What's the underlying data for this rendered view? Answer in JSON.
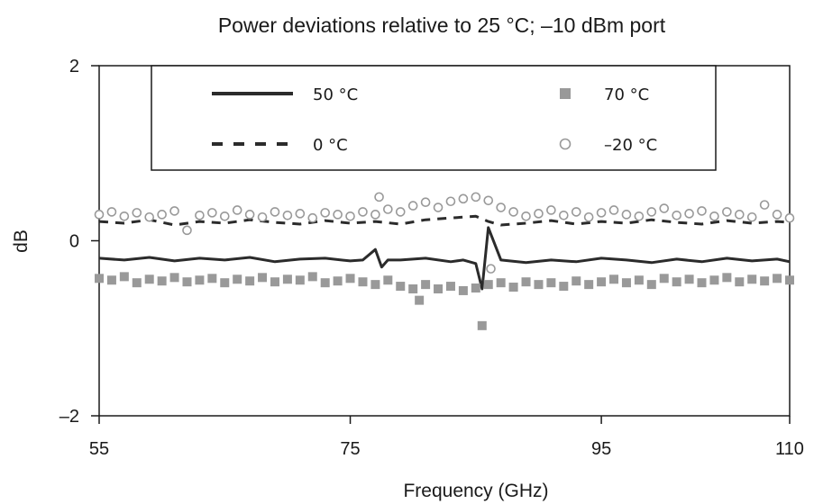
{
  "chart_data": {
    "type": "line",
    "title": "Power deviations relative to 25 °C; –10 dBm port",
    "xlabel": "Frequency (GHz)",
    "ylabel": "dB",
    "xlim": [
      55,
      110
    ],
    "ylim": [
      -2,
      2
    ],
    "x_ticks": [
      55,
      75,
      95,
      110
    ],
    "x_tick_labels": [
      "55",
      "75",
      "95",
      "110"
    ],
    "y_ticks": [
      -2,
      0,
      2
    ],
    "y_tick_labels": [
      "–2",
      "0",
      "2"
    ],
    "grid": false,
    "legend": {
      "placement": "top",
      "columns": 2
    },
    "series": [
      {
        "name": "50 °C",
        "style": "solid-line",
        "color": "#2b2b2b",
        "x": [
          55,
          57,
          59,
          61,
          63,
          65,
          67,
          69,
          71,
          73,
          75,
          76,
          77,
          77.5,
          78,
          79,
          81,
          83,
          84,
          85,
          85.5,
          86,
          87,
          89,
          91,
          93,
          95,
          97,
          99,
          101,
          103,
          105,
          107,
          109,
          110
        ],
        "y": [
          -0.2,
          -0.22,
          -0.19,
          -0.23,
          -0.2,
          -0.22,
          -0.19,
          -0.24,
          -0.21,
          -0.2,
          -0.23,
          -0.22,
          -0.1,
          -0.3,
          -0.22,
          -0.22,
          -0.2,
          -0.24,
          -0.22,
          -0.26,
          -0.55,
          0.15,
          -0.22,
          -0.25,
          -0.22,
          -0.24,
          -0.2,
          -0.22,
          -0.25,
          -0.21,
          -0.24,
          -0.2,
          -0.23,
          -0.21,
          -0.24
        ]
      },
      {
        "name": "70 °C",
        "style": "square-markers",
        "color": "#999999",
        "x": [
          55,
          56,
          57,
          58,
          59,
          60,
          61,
          62,
          63,
          64,
          65,
          66,
          67,
          68,
          69,
          70,
          71,
          72,
          73,
          74,
          75,
          76,
          77,
          78,
          79,
          80,
          80.5,
          81,
          82,
          83,
          84,
          85,
          85.5,
          86,
          87,
          88,
          89,
          90,
          91,
          92,
          93,
          94,
          95,
          96,
          97,
          98,
          99,
          100,
          101,
          102,
          103,
          104,
          105,
          106,
          107,
          108,
          109,
          110
        ],
        "y": [
          -0.43,
          -0.45,
          -0.41,
          -0.48,
          -0.44,
          -0.46,
          -0.42,
          -0.47,
          -0.45,
          -0.43,
          -0.48,
          -0.44,
          -0.46,
          -0.42,
          -0.47,
          -0.44,
          -0.45,
          -0.41,
          -0.48,
          -0.46,
          -0.43,
          -0.47,
          -0.5,
          -0.45,
          -0.52,
          -0.55,
          -0.68,
          -0.5,
          -0.55,
          -0.52,
          -0.57,
          -0.54,
          -0.97,
          -0.5,
          -0.48,
          -0.53,
          -0.47,
          -0.5,
          -0.48,
          -0.52,
          -0.46,
          -0.5,
          -0.47,
          -0.44,
          -0.48,
          -0.45,
          -0.5,
          -0.43,
          -0.47,
          -0.44,
          -0.48,
          -0.45,
          -0.42,
          -0.47,
          -0.44,
          -0.46,
          -0.43,
          -0.45
        ]
      },
      {
        "name": "0 °C",
        "style": "dashed-line",
        "color": "#2b2b2b",
        "x": [
          55,
          57,
          59,
          61,
          63,
          65,
          67,
          69,
          71,
          73,
          75,
          77,
          79,
          81,
          83,
          85,
          86,
          87,
          89,
          91,
          93,
          95,
          97,
          99,
          101,
          103,
          105,
          107,
          109,
          110
        ],
        "y": [
          0.22,
          0.2,
          0.24,
          0.18,
          0.22,
          0.2,
          0.24,
          0.21,
          0.19,
          0.23,
          0.2,
          0.22,
          0.19,
          0.24,
          0.26,
          0.28,
          0.22,
          0.18,
          0.2,
          0.23,
          0.19,
          0.22,
          0.2,
          0.24,
          0.21,
          0.19,
          0.23,
          0.2,
          0.22,
          0.21
        ]
      },
      {
        "name": "–20 °C",
        "style": "circle-markers",
        "color": "#999999",
        "x": [
          55,
          56,
          57,
          58,
          59,
          60,
          61,
          62,
          63,
          64,
          65,
          66,
          67,
          68,
          69,
          70,
          71,
          72,
          73,
          74,
          75,
          76,
          77,
          77.3,
          78,
          79,
          80,
          81,
          82,
          83,
          84,
          85,
          86,
          86.2,
          87,
          88,
          89,
          90,
          91,
          92,
          93,
          94,
          95,
          96,
          97,
          98,
          99,
          100,
          101,
          102,
          103,
          104,
          105,
          106,
          107,
          108,
          109,
          110
        ],
        "y": [
          0.3,
          0.33,
          0.28,
          0.32,
          0.27,
          0.3,
          0.34,
          0.12,
          0.29,
          0.32,
          0.28,
          0.35,
          0.3,
          0.27,
          0.33,
          0.29,
          0.31,
          0.26,
          0.32,
          0.3,
          0.28,
          0.33,
          0.3,
          0.5,
          0.36,
          0.33,
          0.4,
          0.44,
          0.38,
          0.45,
          0.48,
          0.5,
          0.46,
          -0.32,
          0.38,
          0.33,
          0.28,
          0.31,
          0.35,
          0.29,
          0.33,
          0.27,
          0.32,
          0.35,
          0.3,
          0.28,
          0.33,
          0.37,
          0.29,
          0.31,
          0.34,
          0.28,
          0.33,
          0.3,
          0.27,
          0.41,
          0.3,
          0.26
        ]
      }
    ]
  }
}
